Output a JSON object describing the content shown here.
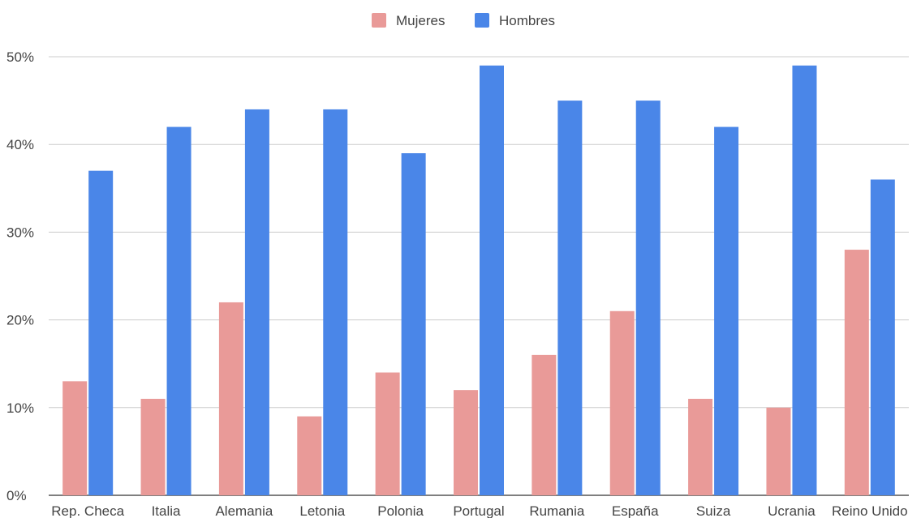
{
  "chart_data": {
    "type": "bar",
    "title": "",
    "xlabel": "",
    "ylabel": "",
    "ylim": [
      0,
      50
    ],
    "yticks": [
      0,
      10,
      20,
      30,
      40,
      50
    ],
    "ytick_labels": [
      "0%",
      "10%",
      "20%",
      "30%",
      "40%",
      "50%"
    ],
    "grid": true,
    "legend_position": "top-center",
    "categories": [
      "Rep. Checa",
      "Italia",
      "Alemania",
      "Letonia",
      "Polonia",
      "Portugal",
      "Rumania",
      "España",
      "Suiza",
      "Ucrania",
      "Reino Unido"
    ],
    "series": [
      {
        "name": "Mujeres",
        "color": "#e99a98",
        "values": [
          13,
          11,
          22,
          9,
          14,
          12,
          16,
          21,
          11,
          10,
          28
        ]
      },
      {
        "name": "Hombres",
        "color": "#4a86e8",
        "values": [
          37,
          42,
          44,
          44,
          39,
          49,
          45,
          45,
          42,
          49,
          36
        ]
      }
    ]
  }
}
